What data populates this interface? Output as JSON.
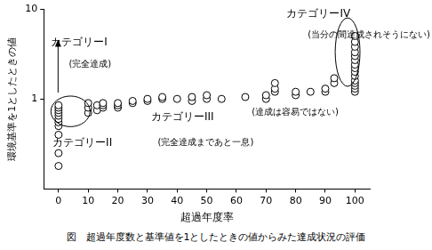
{
  "chart_data": {
    "type": "scatter",
    "caption": "図　超過年度数と基準値を1としたときの値からみた達成状況の評価",
    "x_label": "超過年度率",
    "y_label": "環境基準を1としたときの値",
    "annotations": [
      "カテゴリーI",
      "(完全達成)",
      "カテゴリーII",
      "(完全達成まであと一息)",
      "カテゴリーIII",
      "(達成は容易ではない)",
      "カテゴリーIV",
      "(当分の間達成されそうにない)"
    ],
    "x": [
      0,
      0,
      0,
      0,
      0,
      0,
      0,
      0,
      0,
      0,
      0,
      10,
      10,
      10,
      13,
      13,
      15,
      15,
      15,
      20,
      20,
      20,
      25,
      25,
      30,
      30,
      35,
      35,
      40,
      45,
      45,
      50,
      50,
      55,
      63,
      70,
      70,
      73,
      73,
      73,
      80,
      80,
      85,
      90,
      90,
      93,
      93,
      100,
      100,
      100,
      100,
      100,
      100,
      100,
      100,
      100,
      100,
      100,
      100,
      100,
      100,
      100
    ],
    "values": [
      0.18,
      0.25,
      0.4,
      0.5,
      0.55,
      0.6,
      0.65,
      0.7,
      0.75,
      0.8,
      0.85,
      0.7,
      0.8,
      0.9,
      0.75,
      0.85,
      0.8,
      0.85,
      0.9,
      0.8,
      0.85,
      0.9,
      0.9,
      0.95,
      0.95,
      1.0,
      1.0,
      1.05,
      1.0,
      0.95,
      1.05,
      1.0,
      1.1,
      1.0,
      1.05,
      1.0,
      1.1,
      1.2,
      1.3,
      1.5,
      1.1,
      1.2,
      1.2,
      1.2,
      1.3,
      1.5,
      1.7,
      1.2,
      1.3,
      1.4,
      1.5,
      1.6,
      1.8,
      2.0,
      2.2,
      2.4,
      2.7,
      3.0,
      3.3,
      3.8,
      4.3,
      5.0
    ],
    "color": "#000000",
    "marker": "circle",
    "xlim": [
      -5,
      105
    ],
    "xticks": [
      0,
      10,
      20,
      30,
      40,
      50,
      60,
      70,
      80,
      90,
      100
    ],
    "ylim": [
      0.1,
      10
    ],
    "yticks": [
      1,
      10
    ],
    "log": "y",
    "grid": false
  }
}
